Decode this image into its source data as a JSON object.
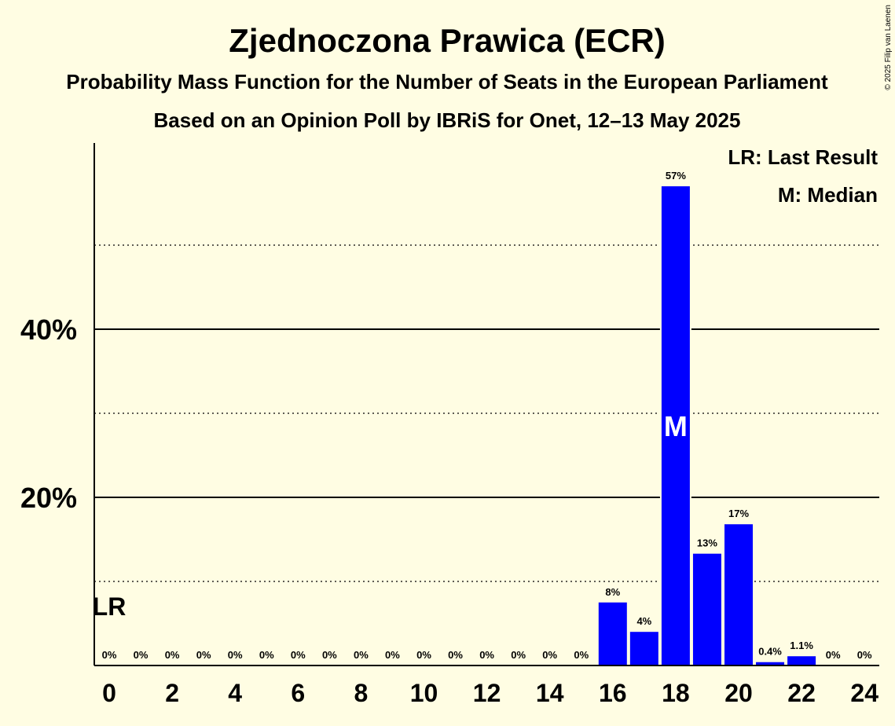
{
  "chart_data": {
    "type": "bar",
    "title": "Zjednoczona Prawica (ECR)",
    "subtitle": "Probability Mass Function for the Number of Seats in the European Parliament",
    "subtitle2": "Based on an Opinion Poll by IBRiS for Onet, 12–13 May 2025",
    "copyright": "© 2025 Filip van Laenen",
    "xlabel": "",
    "ylabel": "",
    "ylim": [
      0,
      62
    ],
    "categories": [
      0,
      1,
      2,
      3,
      4,
      5,
      6,
      7,
      8,
      9,
      10,
      11,
      12,
      13,
      14,
      15,
      16,
      17,
      18,
      19,
      20,
      21,
      22,
      23,
      24
    ],
    "values": [
      0,
      0,
      0,
      0,
      0,
      0,
      0,
      0,
      0,
      0,
      0,
      0,
      0,
      0,
      0,
      0,
      7.5,
      4,
      57,
      13.3,
      16.8,
      0.4,
      1.1,
      0,
      0
    ],
    "value_labels": [
      "0%",
      "0%",
      "0%",
      "0%",
      "0%",
      "0%",
      "0%",
      "0%",
      "0%",
      "0%",
      "0%",
      "0%",
      "0%",
      "0%",
      "0%",
      "0%",
      "8%",
      "4%",
      "57%",
      "13%",
      "17%",
      "0.4%",
      "1.1%",
      "0%",
      "0%"
    ],
    "x_tick_labels": [
      "0",
      "2",
      "4",
      "6",
      "8",
      "10",
      "12",
      "14",
      "16",
      "18",
      "20",
      "22",
      "24"
    ],
    "y_ticks": [
      {
        "value": 20,
        "label": "20%"
      },
      {
        "value": 40,
        "label": "40%"
      }
    ],
    "dotted_gridlines": [
      10,
      30,
      50
    ],
    "bar_color": "#0000ff",
    "last_result": {
      "seat": 0,
      "label": "LR"
    },
    "median": {
      "seat": 18,
      "label": "M"
    },
    "legend": {
      "position": "top-right",
      "items": [
        "LR: Last Result",
        "M: Median"
      ]
    }
  }
}
